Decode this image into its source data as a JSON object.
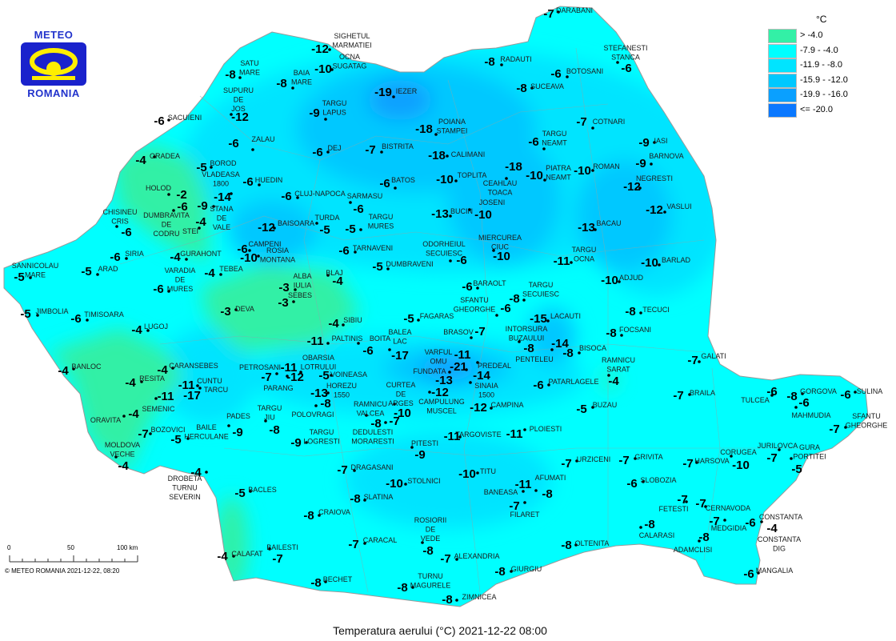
{
  "logo": {
    "top": "METEO",
    "bottom": "ROMANIA"
  },
  "legend": {
    "unit": "°C",
    "items": [
      {
        "label": "> -4.0",
        "color": "#33f0a6"
      },
      {
        "label": "-7.9 - -4.0",
        "color": "#00ffff"
      },
      {
        "label": "-11.9 - -8.0",
        "color": "#00e4ff"
      },
      {
        "label": "-15.9 - -12.0",
        "color": "#00c8ff"
      },
      {
        "label": "-19.9 - -16.0",
        "color": "#0aa0ff"
      },
      {
        "label": "<= -20.0",
        "color": "#0a78ff"
      }
    ]
  },
  "title": "Temperatura aerului (°C) 2021-12-22 08:00",
  "scale": {
    "labels": [
      "0",
      "50",
      "100 km"
    ]
  },
  "copyright": "© METEO ROMANIA 2021-12-22, 08:20",
  "stations": [
    {
      "name": [
        "SIGHETUL",
        "MARMATIEI"
      ],
      "value": "-12"
    },
    {
      "name": [
        "OCNA",
        "SUGATAG"
      ],
      "value": "-10"
    },
    {
      "name": [
        "DARABANI"
      ],
      "value": "-7"
    },
    {
      "name": [
        "STEFANESTI",
        "STANCA"
      ],
      "value": "-6"
    },
    {
      "name": [
        "SATU",
        "MARE"
      ],
      "value": "-8"
    },
    {
      "name": [
        "BAIA",
        "MARE"
      ],
      "value": "-8"
    },
    {
      "name": [
        "RADAUTI"
      ],
      "value": "-8"
    },
    {
      "name": [
        "BOTOSANI"
      ],
      "value": "-6"
    },
    {
      "name": [
        "SUCEAVA"
      ],
      "value": "-8"
    },
    {
      "name": [
        "IEZER"
      ],
      "value": "-19"
    },
    {
      "name": [
        "SUPURU",
        "DE",
        "JOS"
      ],
      "value": "-12"
    },
    {
      "name": [
        "TARGU",
        "LAPUS"
      ],
      "value": "-9"
    },
    {
      "name": [
        "SACUIENI"
      ],
      "value": "-6"
    },
    {
      "name": [
        "POIANA",
        "STAMPEI"
      ],
      "value": "-18"
    },
    {
      "name": [
        "COTNARI"
      ],
      "value": "-7"
    },
    {
      "name": [
        "TARGU",
        "NEAMT"
      ],
      "value": "-6"
    },
    {
      "name": [
        "IASI"
      ],
      "value": "-9"
    },
    {
      "name": [
        "ZALAU"
      ],
      "value": "-6"
    },
    {
      "name": [
        "DEJ"
      ],
      "value": "-6"
    },
    {
      "name": [
        "BISTRITA"
      ],
      "value": "-7"
    },
    {
      "name": [
        "CALIMANI"
      ],
      "value": "-18"
    },
    {
      "name": [
        "BARNOVA"
      ],
      "value": "-9"
    },
    {
      "name": [
        "ORADEA"
      ],
      "value": "-4"
    },
    {
      "name": [
        "BOROD"
      ],
      "value": "-5"
    },
    {
      "name": [
        "VLADEASA",
        "1800"
      ],
      "value": "-14"
    },
    {
      "name": [
        "HUEDIN"
      ],
      "value": "-6"
    },
    {
      "name": [
        "PIATRA",
        "NEAMT"
      ],
      "value": "-10"
    },
    {
      "name": [
        "ROMAN"
      ],
      "value": "-10"
    },
    {
      "name": [
        "TOPLITA"
      ],
      "value": "-10"
    },
    {
      "name": [
        "CEAHLAU",
        "TOACA"
      ],
      "value": "-18"
    },
    {
      "name": [
        "NEGRESTI"
      ],
      "value": "-12"
    },
    {
      "name": [
        "BATOS"
      ],
      "value": "-6"
    },
    {
      "name": [
        "HOLOD"
      ],
      "value": "-2"
    },
    {
      "name": [
        "DUMBRAVITA",
        "DE",
        "CODRU"
      ],
      "value": "-6"
    },
    {
      "name": [
        "STANA",
        "DE",
        "VALE"
      ],
      "value": "-9"
    },
    {
      "name": [
        "CHISINEU",
        "CRIS"
      ],
      "value": "-6"
    },
    {
      "name": [
        "STEI"
      ],
      "value": "-4"
    },
    {
      "name": [
        "CLUJ-NAPOCA"
      ],
      "value": "-6"
    },
    {
      "name": [
        "SARMASU"
      ],
      "value": "-6"
    },
    {
      "name": [
        "BAISOARA"
      ],
      "value": "-12"
    },
    {
      "name": [
        "TURDA"
      ],
      "value": "-5"
    },
    {
      "name": [
        "TARGU",
        "MURES"
      ],
      "value": "-5"
    },
    {
      "name": [
        "BUCIN"
      ],
      "value": "-13"
    },
    {
      "name": [
        "JOSENI"
      ],
      "value": "-10"
    },
    {
      "name": [
        "VASLUI"
      ],
      "value": "-12"
    },
    {
      "name": [
        "BACAU"
      ],
      "value": "-13"
    },
    {
      "name": [
        "SIRIA"
      ],
      "value": "-6"
    },
    {
      "name": [
        "GURAHONT"
      ],
      "value": "-4"
    },
    {
      "name": [
        "CAMPENI"
      ],
      "value": "-6"
    },
    {
      "name": [
        "ROSIA",
        "MONTANA"
      ],
      "value": "-10"
    },
    {
      "name": [
        "TARNAVENI"
      ],
      "value": "-6"
    },
    {
      "name": [
        "ODORHEIUL",
        "SECUIESC"
      ],
      "value": "-6"
    },
    {
      "name": [
        "MIERCUREA",
        "CIUC"
      ],
      "value": "-10"
    },
    {
      "name": [
        "TARGU",
        "OCNA"
      ],
      "value": "-11"
    },
    {
      "name": [
        "BARLAD"
      ],
      "value": "-10"
    },
    {
      "name": [
        "SANNICOLAU",
        "MARE"
      ],
      "value": "-5"
    },
    {
      "name": [
        "ARAD"
      ],
      "value": "-5"
    },
    {
      "name": [
        "DUMBRAVENI"
      ],
      "value": "-5"
    },
    {
      "name": [
        "TEBEA"
      ],
      "value": "-4"
    },
    {
      "name": [
        "VARADIA",
        "DE",
        "MURES"
      ],
      "value": "-6"
    },
    {
      "name": [
        "ALBA",
        "IULIA"
      ],
      "value": "-3"
    },
    {
      "name": [
        "BLAJ"
      ],
      "value": "-4"
    },
    {
      "name": [
        "SEBES"
      ],
      "value": "-3"
    },
    {
      "name": [
        "ADJUD"
      ],
      "value": "-10"
    },
    {
      "name": [
        "BARAOLT"
      ],
      "value": "-6"
    },
    {
      "name": [
        "TARGU",
        "SECUIESC"
      ],
      "value": "-8"
    },
    {
      "name": [
        "DEVA"
      ],
      "value": "-3"
    },
    {
      "name": [
        "JIMBOLIA"
      ],
      "value": "-5"
    },
    {
      "name": [
        "TIMISOARA"
      ],
      "value": "-6"
    },
    {
      "name": [
        "SFANTU",
        "GHEORGHE"
      ],
      "value": "-6"
    },
    {
      "name": [
        "TECUCI"
      ],
      "value": "-8"
    },
    {
      "name": [
        "FAGARAS"
      ],
      "value": "-5"
    },
    {
      "name": [
        "SIBIU"
      ],
      "value": "-4"
    },
    {
      "name": [
        "LACAUTI"
      ],
      "value": "-15"
    },
    {
      "name": [
        "LUGOJ"
      ],
      "value": "-4"
    },
    {
      "name": [
        "BRASOV"
      ],
      "value": "-7"
    },
    {
      "name": [
        "FOCSANI"
      ],
      "value": "-8"
    },
    {
      "name": [
        "PALTINIS"
      ],
      "value": "-11"
    },
    {
      "name": [
        "BOITA"
      ],
      "value": "-6"
    },
    {
      "name": [
        "BALEA",
        "LAC"
      ],
      "value": "-17"
    },
    {
      "name": [
        "INTORSURA",
        "BUZAULUI"
      ],
      "value": "-8"
    },
    {
      "name": [
        "PENTELEU"
      ],
      "value": "-14"
    },
    {
      "name": [
        "BISOCA"
      ],
      "value": "-8"
    },
    {
      "name": [
        "RAMNICU",
        "SARAT"
      ],
      "value": "-4"
    },
    {
      "name": [
        "GALATI"
      ],
      "value": "-7"
    },
    {
      "name": [
        "OBARSIA",
        "LOTRULUI"
      ],
      "value": "-11"
    },
    {
      "name": [
        "PETROSANI"
      ],
      "value": "-7"
    },
    {
      "name": [
        "PARANG"
      ],
      "value": "-12"
    },
    {
      "name": [
        "VOINEASA"
      ],
      "value": "-5"
    },
    {
      "name": [
        "HOREZU",
        "1550"
      ],
      "value": "-13"
    },
    {
      "name": [
        "VARFUL",
        "OMU"
      ],
      "value": "-21"
    },
    {
      "name": [
        "PREDEAL"
      ],
      "value": "-11"
    },
    {
      "name": [
        "FUNDATA"
      ],
      "value": "-13"
    },
    {
      "name": [
        "SINAIA",
        "1500"
      ],
      "value": "-14"
    },
    {
      "name": [
        "CURTEA",
        "DE",
        "ARGES"
      ],
      "value": "-10"
    },
    {
      "name": [
        "CAMPULUNG",
        "MUSCEL"
      ],
      "value": "-12"
    },
    {
      "name": [
        "CAMPINA"
      ],
      "value": "-12"
    },
    {
      "name": [
        "RAMNICU",
        "VALCEA"
      ],
      "value": "-8"
    },
    {
      "name": [
        "DEDULESTI",
        "MORARESTI"
      ],
      "value": "-7"
    },
    {
      "name": [
        "POLOVRAGI"
      ],
      "value": "-8"
    },
    {
      "name": [
        "TARGU",
        "JIU"
      ],
      "value": "-8"
    },
    {
      "name": [
        "TARGU",
        "LOGRESTI"
      ],
      "value": "-9"
    },
    {
      "name": [
        "PADES"
      ],
      "value": "-9"
    },
    {
      "name": [
        "CUNTU"
      ],
      "value": "-11"
    },
    {
      "name": [
        "TARCU"
      ],
      "value": "-17"
    },
    {
      "name": [
        "CARANSEBES"
      ],
      "value": "-4"
    },
    {
      "name": [
        "BANLOC"
      ],
      "value": "-4"
    },
    {
      "name": [
        "RESITA"
      ],
      "value": "-4"
    },
    {
      "name": [
        "SEMENIC"
      ],
      "value": "-11"
    },
    {
      "name": [
        "ORAVITA"
      ],
      "value": "-4"
    },
    {
      "name": [
        "BOZOVICI"
      ],
      "value": "-7"
    },
    {
      "name": [
        "BAILE",
        "HERCULANE"
      ],
      "value": "-5"
    },
    {
      "name": [
        "MOLDOVA",
        "VECHE"
      ],
      "value": "-4"
    },
    {
      "name": [
        "DROBETA",
        "TURNU",
        "SEVERIN"
      ],
      "value": "-4"
    },
    {
      "name": [
        "BACLES"
      ],
      "value": "-5"
    },
    {
      "name": [
        "DRAGASANI"
      ],
      "value": "-7"
    },
    {
      "name": [
        "PITESTI"
      ],
      "value": "-9"
    },
    {
      "name": [
        "TARGOVISTE"
      ],
      "value": "-11"
    },
    {
      "name": [
        "PLOIESTI"
      ],
      "value": "-11"
    },
    {
      "name": [
        "STOLNICI"
      ],
      "value": "-10"
    },
    {
      "name": [
        "TITU"
      ],
      "value": "-10"
    },
    {
      "name": [
        "SLATINA"
      ],
      "value": "-8"
    },
    {
      "name": [
        "CRAIOVA"
      ],
      "value": "-8"
    },
    {
      "name": [
        "BANEASA"
      ],
      "value": "-11"
    },
    {
      "name": [
        "AFUMATI"
      ],
      "value": "-8"
    },
    {
      "name": [
        "FILARET"
      ],
      "value": "-7"
    },
    {
      "name": [
        "ROSIORII",
        "DE",
        "VEDE"
      ],
      "value": "-8"
    },
    {
      "name": [
        "CARACAL"
      ],
      "value": "-7"
    },
    {
      "name": [
        "BAILESTI"
      ],
      "value": "-7"
    },
    {
      "name": [
        "CALAFAT"
      ],
      "value": "-4"
    },
    {
      "name": [
        "ALEXANDRIA"
      ],
      "value": "-7"
    },
    {
      "name": [
        "GIURGIU"
      ],
      "value": "-8"
    },
    {
      "name": [
        "BECHET"
      ],
      "value": "-8"
    },
    {
      "name": [
        "TURNU",
        "MAGURELE"
      ],
      "value": "-8"
    },
    {
      "name": [
        "ZIMNICEA"
      ],
      "value": "-8"
    },
    {
      "name": [
        "OLTENITA"
      ],
      "value": "-8"
    },
    {
      "name": [
        "URZICENI"
      ],
      "value": "-7"
    },
    {
      "name": [
        "GRIVITA"
      ],
      "value": "-7"
    },
    {
      "name": [
        "SLOBOZIA"
      ],
      "value": "-6"
    },
    {
      "name": [
        "PATARLAGELE"
      ],
      "value": "-6"
    },
    {
      "name": [
        "BUZAU"
      ],
      "value": "-5"
    },
    {
      "name": [
        "BRAILA"
      ],
      "value": "-7"
    },
    {
      "name": [
        "HARSOVA"
      ],
      "value": "-7"
    },
    {
      "name": [
        "CORUGEA"
      ],
      "value": "-10"
    },
    {
      "name": [
        "JURILOVCA"
      ],
      "value": "-7"
    },
    {
      "name": [
        "GURA",
        "PORTITEI"
      ],
      "value": "-5"
    },
    {
      "name": [
        "TULCEA"
      ],
      "value": "-6"
    },
    {
      "name": [
        "GORGOVA"
      ],
      "value": "-8"
    },
    {
      "name": [
        "MAHMUDIA"
      ],
      "value": "-6"
    },
    {
      "name": [
        "SULINA"
      ],
      "value": "-6"
    },
    {
      "name": [
        "SFANTU",
        "GHEORGHE"
      ],
      "value": "-7"
    },
    {
      "name": [
        "FETESTI"
      ],
      "value": "-7"
    },
    {
      "name": [
        "CERNAVODA"
      ],
      "value": "-7"
    },
    {
      "name": [
        "MEDGIDIA"
      ],
      "value": "-7"
    },
    {
      "name": [
        "CONSTANTA"
      ],
      "value": "-6"
    },
    {
      "name": [
        "CONSTANTA",
        "DIG"
      ],
      "value": "-4"
    },
    {
      "name": [
        "CALARASI"
      ],
      "value": "-8"
    },
    {
      "name": [
        "ADAMCLISI"
      ],
      "value": "-8"
    },
    {
      "name": [
        "MANGALIA"
      ],
      "value": "-6"
    }
  ]
}
